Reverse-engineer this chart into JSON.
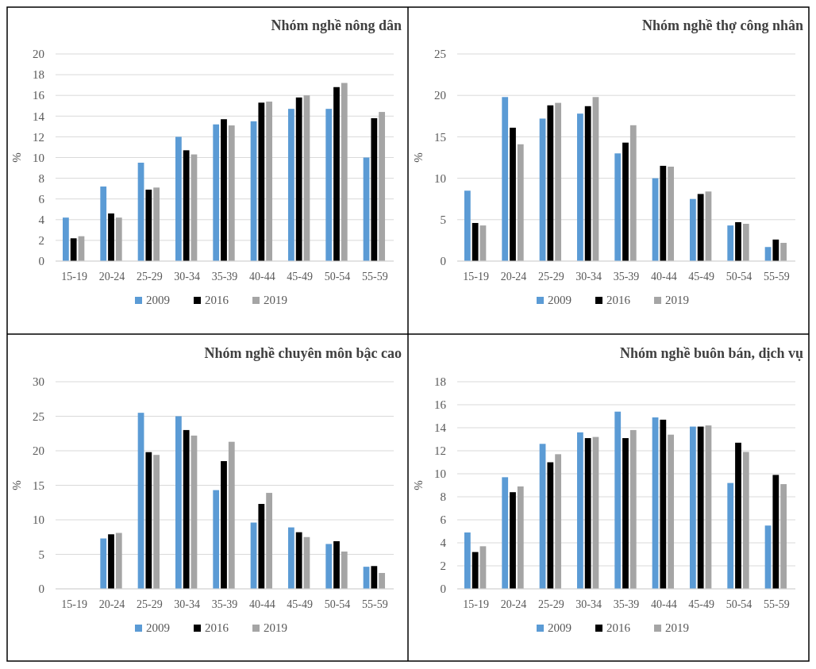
{
  "chart_data": [
    {
      "type": "bar",
      "title": "Nhóm nghề nông dân",
      "ylabel": "%",
      "categories": [
        "15-19",
        "20-24",
        "25-29",
        "30-34",
        "35-39",
        "40-44",
        "45-49",
        "50-54",
        "55-59"
      ],
      "ylim": [
        0,
        20
      ],
      "yticks": [
        0,
        2,
        4,
        6,
        8,
        10,
        12,
        14,
        16,
        18,
        20
      ],
      "grid": "y",
      "legend": "bottom",
      "series": [
        {
          "name": "2009",
          "color": "#5b9bd5",
          "values": [
            4.2,
            7.2,
            9.5,
            12.0,
            13.2,
            13.5,
            14.7,
            14.7,
            10.0
          ]
        },
        {
          "name": "2016",
          "color": "#000000",
          "values": [
            2.2,
            4.6,
            6.9,
            10.7,
            13.7,
            15.3,
            15.8,
            16.8,
            13.8
          ]
        },
        {
          "name": "2019",
          "color": "#a5a5a5",
          "values": [
            2.4,
            4.2,
            7.1,
            10.3,
            13.1,
            15.4,
            16.0,
            17.2,
            14.4
          ]
        }
      ]
    },
    {
      "type": "bar",
      "title": "Nhóm nghề thợ công nhân",
      "ylabel": "%",
      "categories": [
        "15-19",
        "20-24",
        "25-29",
        "30-34",
        "35-39",
        "40-44",
        "45-49",
        "50-54",
        "55-59"
      ],
      "ylim": [
        0,
        25
      ],
      "yticks": [
        0,
        5,
        10,
        15,
        20,
        25
      ],
      "grid": "y",
      "legend": "bottom",
      "series": [
        {
          "name": "2009",
          "color": "#5b9bd5",
          "values": [
            8.5,
            19.8,
            17.2,
            17.8,
            13.0,
            10.0,
            7.5,
            4.3,
            1.7
          ]
        },
        {
          "name": "2016",
          "color": "#000000",
          "values": [
            4.6,
            16.1,
            18.8,
            18.7,
            14.3,
            11.5,
            8.1,
            4.7,
            2.6
          ]
        },
        {
          "name": "2019",
          "color": "#a5a5a5",
          "values": [
            4.3,
            14.1,
            19.1,
            19.8,
            16.4,
            11.4,
            8.4,
            4.5,
            2.2
          ]
        }
      ]
    },
    {
      "type": "bar",
      "title": "Nhóm nghề chuyên môn bậc cao",
      "ylabel": "%",
      "categories": [
        "15-19",
        "20-24",
        "25-29",
        "30-34",
        "35-39",
        "40-44",
        "45-49",
        "50-54",
        "55-59"
      ],
      "ylim": [
        0,
        30
      ],
      "yticks": [
        0,
        5,
        10,
        15,
        20,
        25,
        30
      ],
      "grid": "y",
      "legend": "bottom",
      "series": [
        {
          "name": "2009",
          "color": "#5b9bd5",
          "values": [
            0,
            7.3,
            25.5,
            25.0,
            14.3,
            9.6,
            8.9,
            6.5,
            3.2
          ]
        },
        {
          "name": "2016",
          "color": "#000000",
          "values": [
            0,
            7.9,
            19.8,
            23.0,
            18.5,
            12.3,
            8.2,
            6.9,
            3.3
          ]
        },
        {
          "name": "2019",
          "color": "#a5a5a5",
          "values": [
            0,
            8.1,
            19.4,
            22.2,
            21.3,
            13.9,
            7.5,
            5.4,
            2.3
          ]
        }
      ]
    },
    {
      "type": "bar",
      "title": "Nhóm nghề buôn bán, dịch vụ",
      "ylabel": "%",
      "categories": [
        "15-19",
        "20-24",
        "25-29",
        "30-34",
        "35-39",
        "40-44",
        "45-49",
        "50-54",
        "55-59"
      ],
      "ylim": [
        0,
        18
      ],
      "yticks": [
        0,
        2,
        4,
        6,
        8,
        10,
        12,
        14,
        16,
        18
      ],
      "grid": "y",
      "legend": "bottom",
      "series": [
        {
          "name": "2009",
          "color": "#5b9bd5",
          "values": [
            4.9,
            9.7,
            12.6,
            13.6,
            15.4,
            14.9,
            14.1,
            9.2,
            5.5
          ]
        },
        {
          "name": "2016",
          "color": "#000000",
          "values": [
            3.2,
            8.4,
            11.0,
            13.1,
            13.1,
            14.7,
            14.1,
            12.7,
            9.9
          ]
        },
        {
          "name": "2019",
          "color": "#a5a5a5",
          "values": [
            3.7,
            8.9,
            11.7,
            13.2,
            13.8,
            13.4,
            14.2,
            11.9,
            9.1
          ]
        }
      ]
    }
  ]
}
